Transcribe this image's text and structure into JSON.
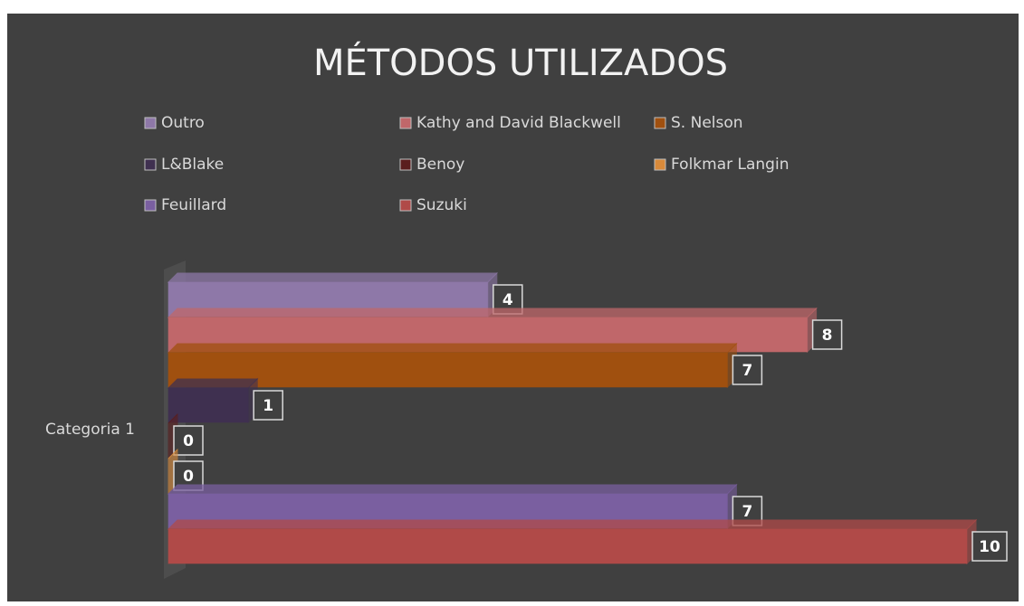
{
  "chart_data": {
    "type": "bar3d",
    "title": "MÉTODOS UTILIZADOS",
    "categories": [
      "Categoria 1"
    ],
    "xlim": [
      0,
      10
    ],
    "series": [
      {
        "name": "Outro",
        "color": "#8e78a8",
        "values": [
          4
        ]
      },
      {
        "name": "Kathy and David Blackwell",
        "color": "#c0676a",
        "values": [
          8
        ]
      },
      {
        "name": "S. Nelson",
        "color": "#a0500f",
        "values": [
          7
        ]
      },
      {
        "name": "L&Blake",
        "color": "#3f3050",
        "values": [
          1
        ]
      },
      {
        "name": "Benoy",
        "color": "#5a1e1e",
        "values": [
          0
        ]
      },
      {
        "name": "Folkmar Langin",
        "color": "#d98a3a",
        "values": [
          0
        ]
      },
      {
        "name": "Feuillard",
        "color": "#7a5fa0",
        "values": [
          7
        ]
      },
      {
        "name": "Suzuki",
        "color": "#b04a48",
        "values": [
          10
        ]
      }
    ]
  }
}
